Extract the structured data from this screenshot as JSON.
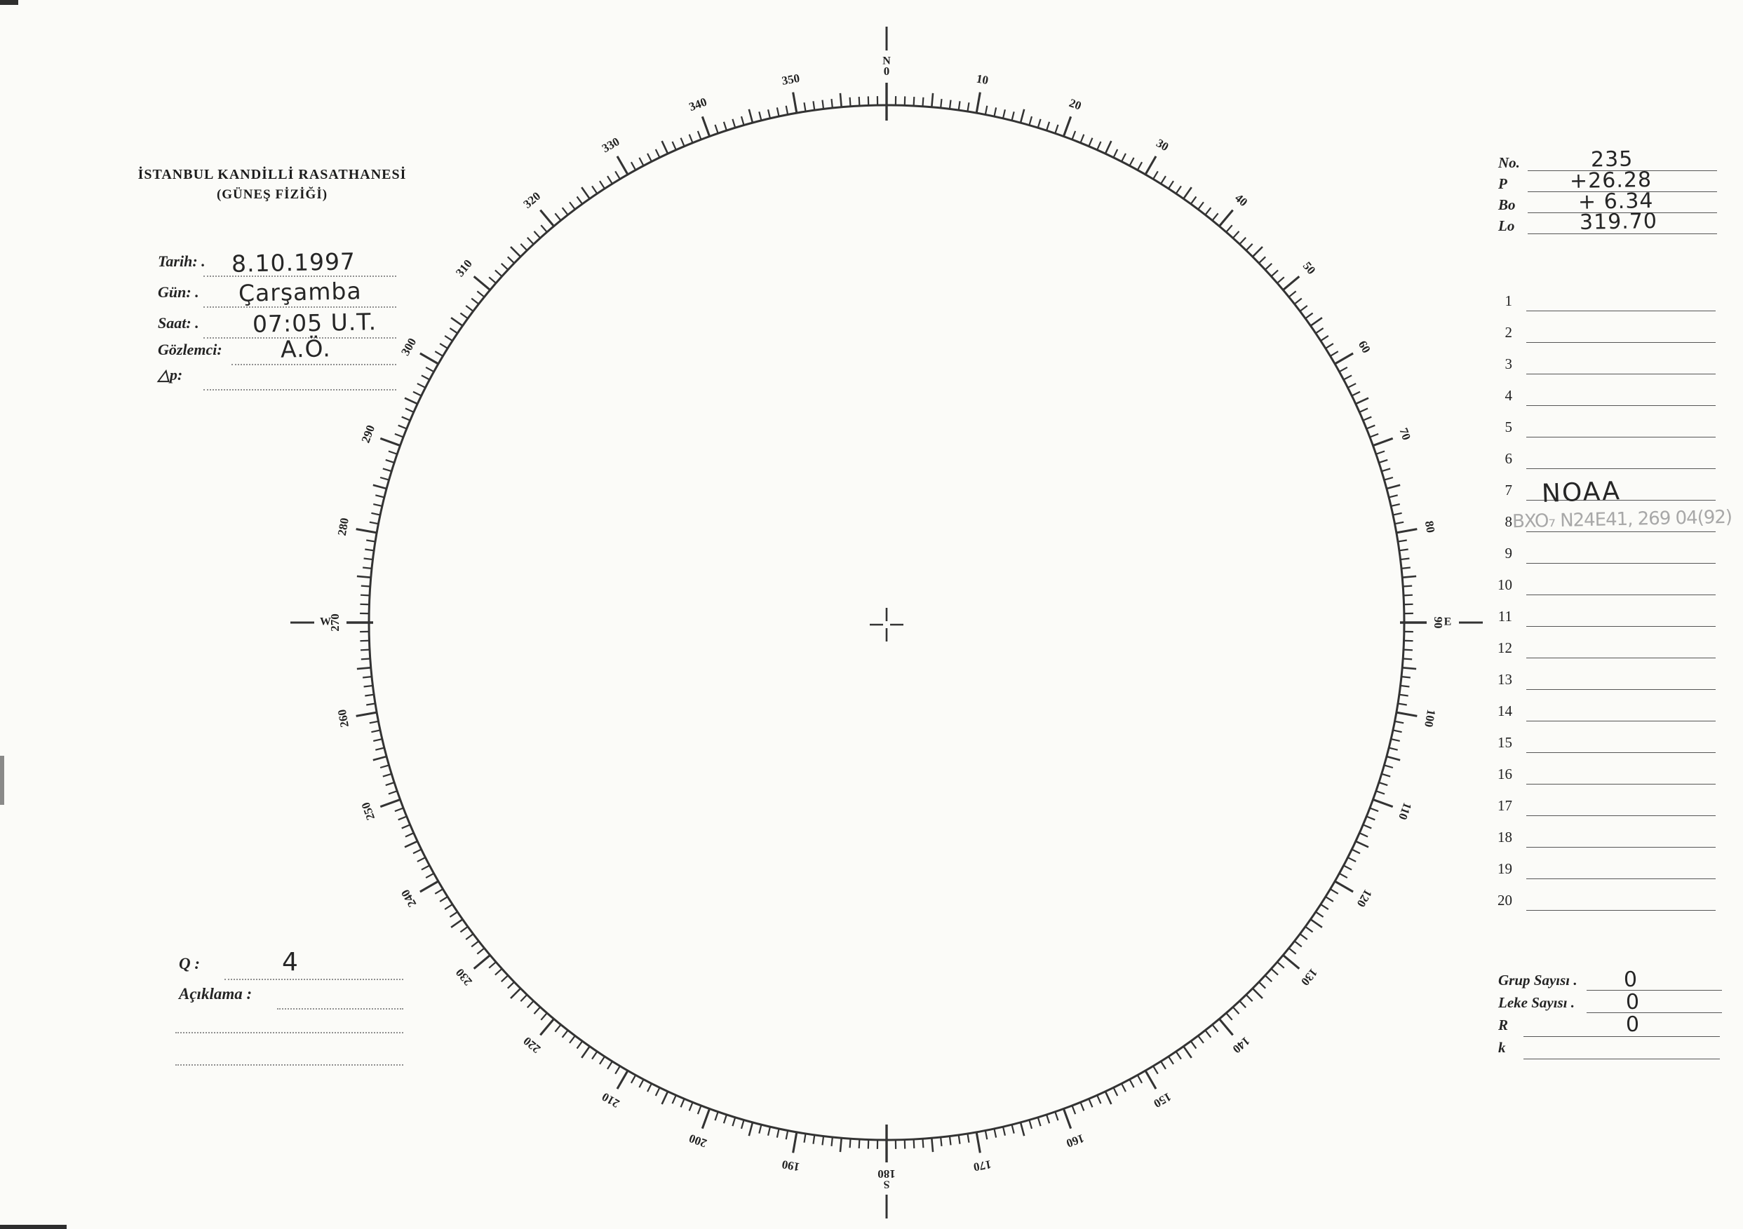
{
  "page": {
    "paper_color": "#fbfbf8",
    "ink_color": "#2b2b2b",
    "pencil_color": "#a8a8a8"
  },
  "header": {
    "title_line1": "İSTANBUL KANDİLLİ RASATHANESİ",
    "title_line2": "(GÜNEŞ FİZİĞİ)"
  },
  "observation_fields": [
    {
      "label": "Tarih: .",
      "value": "8.10.1997"
    },
    {
      "label": "Gün: .",
      "value": "Çarşamba"
    },
    {
      "label": "Saat: .",
      "value": "07:05 U.T."
    },
    {
      "label": "Gözlemci:",
      "value": "A.Ö."
    },
    {
      "label": "△p:",
      "value": ""
    }
  ],
  "solar_params": [
    {
      "label": "No.",
      "value": "235"
    },
    {
      "label": "P",
      "value": "+26.28"
    },
    {
      "label": "Bo",
      "value": "+ 6.34"
    },
    {
      "label": "Lo",
      "value": "319.70"
    }
  ],
  "region_list": {
    "rows": [
      {
        "num": "1",
        "value": "",
        "pencil": ""
      },
      {
        "num": "2",
        "value": "",
        "pencil": ""
      },
      {
        "num": "3",
        "value": "",
        "pencil": ""
      },
      {
        "num": "4",
        "value": "",
        "pencil": ""
      },
      {
        "num": "5",
        "value": "",
        "pencil": ""
      },
      {
        "num": "6",
        "value": "",
        "pencil": ""
      },
      {
        "num": "7",
        "value": "NOAA",
        "pencil": ""
      },
      {
        "num": "8",
        "value": "",
        "pencil": "BXO₇ N24E41, 269 04(92)"
      },
      {
        "num": "9",
        "value": "",
        "pencil": ""
      },
      {
        "num": "10",
        "value": "",
        "pencil": ""
      },
      {
        "num": "11",
        "value": "",
        "pencil": ""
      },
      {
        "num": "12",
        "value": "",
        "pencil": ""
      },
      {
        "num": "13",
        "value": "",
        "pencil": ""
      },
      {
        "num": "14",
        "value": "",
        "pencil": ""
      },
      {
        "num": "15",
        "value": "",
        "pencil": ""
      },
      {
        "num": "16",
        "value": "",
        "pencil": ""
      },
      {
        "num": "17",
        "value": "",
        "pencil": ""
      },
      {
        "num": "18",
        "value": "",
        "pencil": ""
      },
      {
        "num": "19",
        "value": "",
        "pencil": ""
      },
      {
        "num": "20",
        "value": "",
        "pencil": ""
      }
    ]
  },
  "bottom_left": {
    "q_label": "Q :",
    "q_value": "4",
    "aciklama_label": "Açıklama :"
  },
  "summary_fields": [
    {
      "label": "Grup Sayısı .",
      "value": "0"
    },
    {
      "label": "Leke Sayısı .",
      "value": "0"
    },
    {
      "label": "R",
      "value": "0"
    },
    {
      "label": "k",
      "value": ""
    }
  ],
  "dial": {
    "degree_labels": [
      "0",
      "10",
      "20",
      "30",
      "40",
      "50",
      "60",
      "70",
      "80",
      "90",
      "100",
      "110",
      "120",
      "130",
      "140",
      "150",
      "160",
      "170",
      "180",
      "190",
      "200",
      "210",
      "220",
      "230",
      "240",
      "250",
      "260",
      "270",
      "280",
      "290",
      "300",
      "310",
      "320",
      "330",
      "340",
      "350"
    ],
    "cardinals": [
      {
        "letter": "N",
        "angle": 0
      },
      {
        "letter": "E",
        "angle": 90
      },
      {
        "letter": "S",
        "angle": 180
      },
      {
        "letter": "W",
        "angle": 270
      }
    ]
  }
}
